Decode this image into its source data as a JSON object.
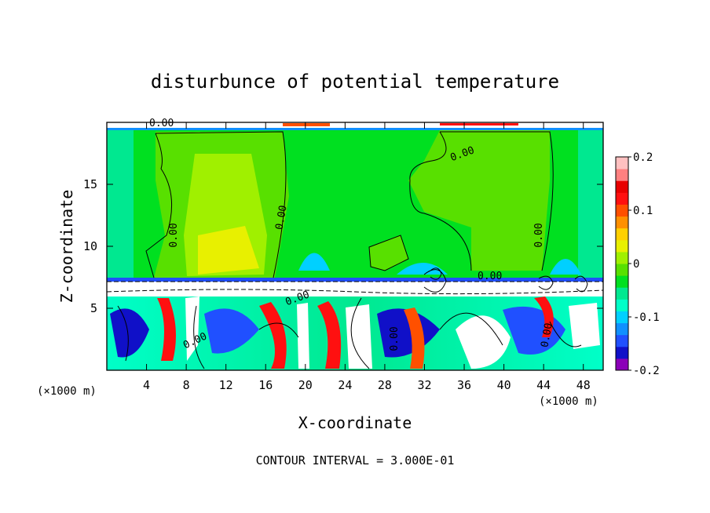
{
  "chart_data": {
    "type": "heatmap",
    "title": "disturbunce of potential temperature",
    "xlabel": "X-coordinate",
    "ylabel": "Z-coordinate",
    "x_unit": "(×1000 m)",
    "z_unit": "(×1000 m)",
    "xlim": [
      0,
      50
    ],
    "ylim": [
      0,
      20
    ],
    "x_ticks": [
      4,
      8,
      12,
      16,
      20,
      24,
      28,
      32,
      36,
      40,
      44,
      48
    ],
    "y_ticks": [
      5,
      10,
      15
    ],
    "colorbar": {
      "min": -0.2,
      "max": 0.2,
      "ticks": [
        0.2,
        0.1,
        0,
        -0.1,
        -0.2
      ],
      "colors": [
        "#8b00b8",
        "#1010c8",
        "#2050ff",
        "#1090ff",
        "#00d0ff",
        "#00ffc8",
        "#00e890",
        "#00e020",
        "#58e000",
        "#a0f000",
        "#e8f000",
        "#ffd000",
        "#ff9000",
        "#ff5000",
        "#ff1010",
        "#e80000",
        "#ff8080",
        "#ffc0c0"
      ]
    },
    "contour_labels": [
      "0.00",
      "0.00",
      "0.00",
      "0.00",
      "0.00",
      "0.00",
      "0.00",
      "0.00",
      "0.00",
      "0.00"
    ],
    "footer": "CONTOUR INTERVAL = 3.000E-01"
  }
}
